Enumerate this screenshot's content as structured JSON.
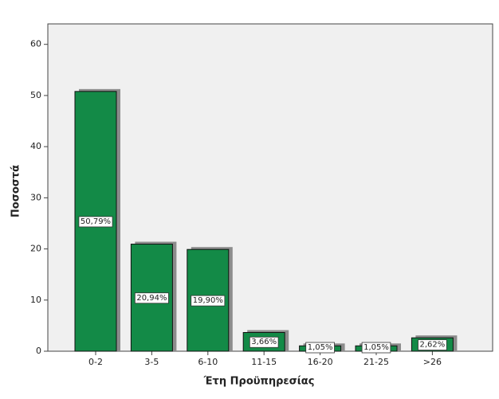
{
  "chart_data": {
    "type": "bar",
    "categories": [
      "0-2",
      "3-5",
      "6-10",
      "11-15",
      "16-20",
      "21-25",
      ">26"
    ],
    "values": [
      50.79,
      20.94,
      19.9,
      3.66,
      1.05,
      1.05,
      2.62
    ],
    "value_labels": [
      "50,79%",
      "20,94%",
      "19,90%",
      "3,66%",
      "1,05%",
      "1,05%",
      "2,62%"
    ],
    "color": "#138a47",
    "x_label": "Έτη Προϋπηρεσίας",
    "y_label": "Ποσοστά",
    "ylim": [
      0,
      64
    ],
    "yticks": [
      0,
      10,
      20,
      30,
      40,
      50,
      60
    ]
  }
}
